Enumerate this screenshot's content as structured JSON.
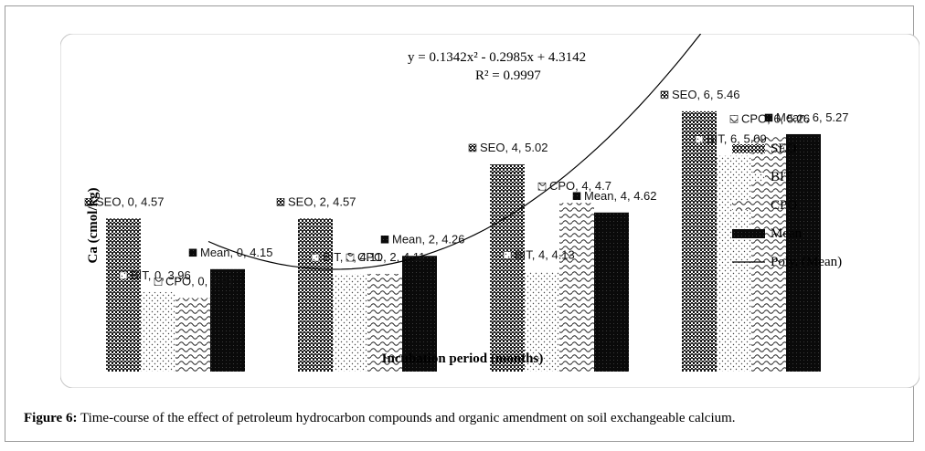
{
  "caption": {
    "label": "Figure 6:",
    "text": " Time-course of the effect of petroleum hydrocarbon compounds and organic amendment on soil exchangeable calcium."
  },
  "chart_data": {
    "type": "bar",
    "ylabel": "Ca (cmol/kg)",
    "xlabel": "Incubation period (months)",
    "categories": [
      "0",
      "2",
      "4",
      "6"
    ],
    "ylim": [
      3.3,
      5.8
    ],
    "series": [
      {
        "name": "SEO",
        "values": [
          4.57,
          4.57,
          5.02,
          5.46
        ],
        "pattern": "bricks"
      },
      {
        "name": "BIT",
        "values": [
          3.96,
          4.11,
          4.13,
          5.09
        ],
        "pattern": "dots"
      },
      {
        "name": "CPO",
        "values": [
          3.91,
          4.11,
          4.7,
          5.26
        ],
        "pattern": "waves"
      },
      {
        "name": "Mean",
        "values": [
          4.15,
          4.26,
          4.62,
          5.27
        ],
        "pattern": "dark"
      }
    ],
    "data_labels": [
      [
        "SEO, 0, 4.57",
        "SEO, 2, 4.57",
        "SEO, 4, 5.02",
        "SEO, 6, 5.46"
      ],
      [
        "BIT, 0, 3.96",
        "BIT, 2, 4.11",
        "BIT, 4, 4.13",
        "BIT, 6, 5.09"
      ],
      [
        "CPO, 0, 3.91",
        "CPO, 2, 4.11",
        "CPO, 4, 4.7",
        "CPO, 6, 5.26"
      ],
      [
        "Mean, 0, 4.15",
        "Mean, 2, 4.26",
        "Mean, 4, 4.62",
        "Mean, 6, 5.27"
      ]
    ],
    "trendline": {
      "name": "Poly. (Mean)",
      "coefficients": [
        0.1342,
        -0.2985,
        4.3142
      ],
      "equation": "y = 0.1342x² - 0.2985x + 4.3142",
      "r2": "R² = 0.9997"
    },
    "legend": {
      "placement": "right",
      "entries": [
        "SEO",
        "BIT",
        "CPO",
        "Mean",
        "Poly. (Mean)"
      ]
    }
  }
}
